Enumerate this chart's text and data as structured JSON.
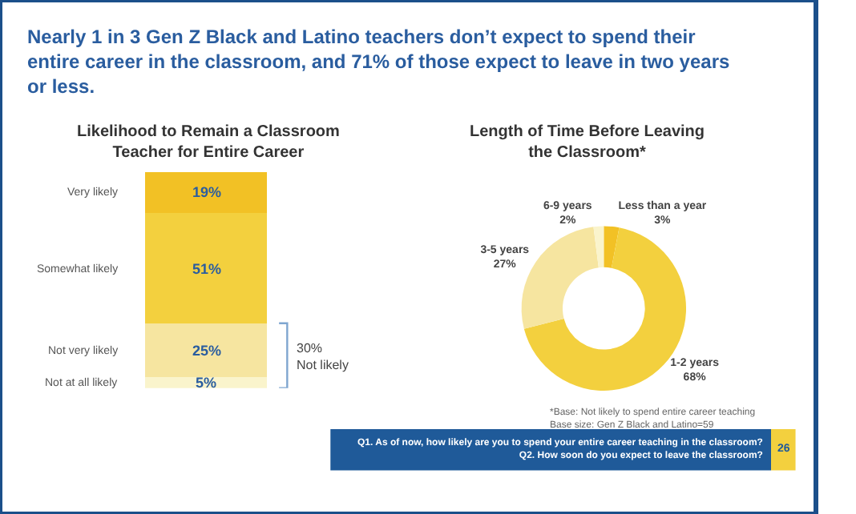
{
  "chart_data": [
    {
      "type": "bar",
      "title": "Nearly 1 in 3 Gen Z Black and Latino teachers don’t expect to spend their entire career in the classroom, and 71% of those expect to leave in two years or less.",
      "subtitle": "Likelihood to Remain a Classroom\nTeacher for Entire Career",
      "categories": [
        null
      ],
      "stacked": true,
      "series": [
        {
          "name": "Not at all likely",
          "color": "#faf4cc",
          "values": [
            5
          ],
          "value_labels": [
            "5%"
          ]
        },
        {
          "name": "Not very likely",
          "color": "#f6e5a0",
          "values": [
            25
          ],
          "value_labels": [
            "25%"
          ]
        },
        {
          "name": "Somewhat likely",
          "color": "#f3d03e",
          "values": [
            51
          ],
          "value_labels": [
            "51%"
          ]
        },
        {
          "name": "Very likely",
          "color": "#f2c125",
          "values": [
            19
          ],
          "value_labels": [
            "19%"
          ]
        }
      ],
      "annotations": [
        "30%\nNot likely"
      ]
    },
    {
      "type": "donut",
      "title": "Length of Time Before Leaving\nthe Classroom*",
      "categories": [
        "Less than a year",
        "1-2 years",
        "3-5 years",
        "6-9 years"
      ],
      "values": [
        3,
        68,
        27,
        2
      ],
      "colors": [
        "#f2c125",
        "#f3d03e",
        "#f6e5a0",
        "#faf4cc"
      ],
      "value_labels": [
        "3%",
        "68%",
        "27%",
        "2%"
      ],
      "annotations": [
        "*Base: Not likely to spend entire career teaching\nBase size: Gen Z Black and Latino=59",
        "Q1. As of now, how likely are you to spend your entire career teaching in the classroom?\nQ2. How soon do you expect to leave the classroom?",
        "26"
      ]
    }
  ]
}
